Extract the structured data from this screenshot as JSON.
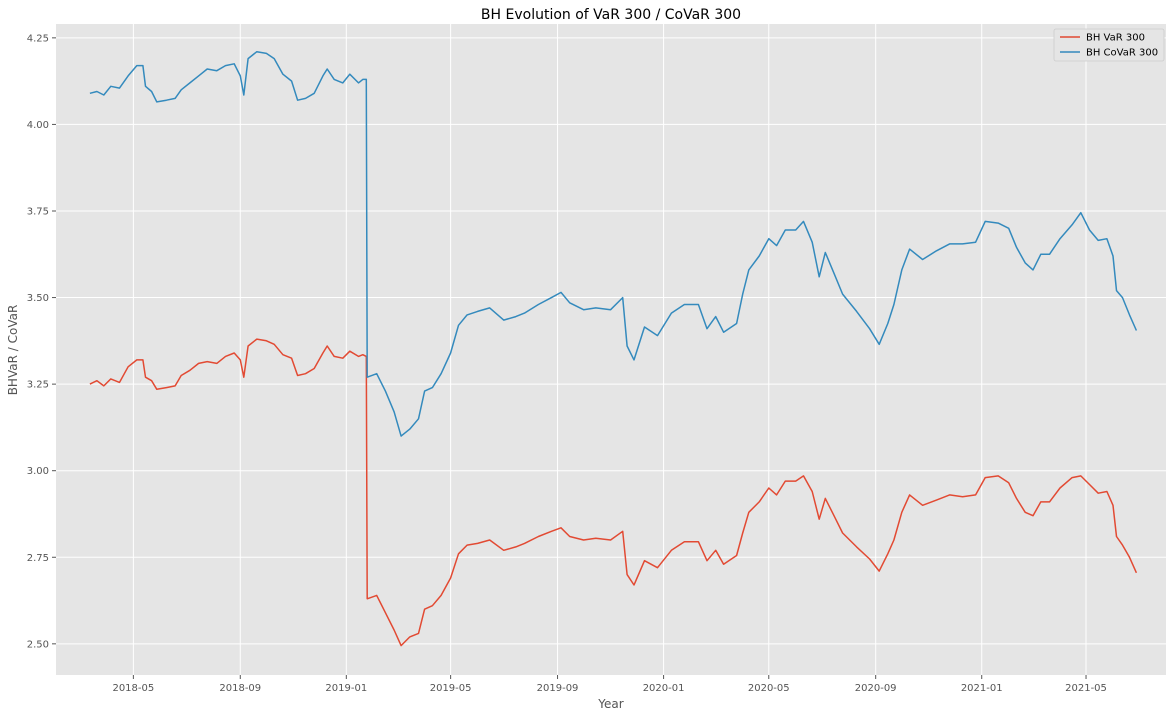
{
  "chart_data": {
    "type": "line",
    "title": "BH  Evolution of VaR 300 / CoVaR 300",
    "xlabel": "Year",
    "ylabel": "BHVaR / CoVaR",
    "x_ticks": [
      "2018-05",
      "2018-09",
      "2019-01",
      "2019-05",
      "2019-09",
      "2020-01",
      "2020-05",
      "2020-09",
      "2021-01",
      "2021-05"
    ],
    "x_range": [
      "2018-02-01",
      "2021-08-01"
    ],
    "y_ticks": [
      "2.50",
      "2.75",
      "3.00",
      "3.25",
      "3.50",
      "3.75",
      "4.00",
      "4.25"
    ],
    "ylim": [
      2.41,
      4.29
    ],
    "grid": true,
    "legend_position": "top-right",
    "series": [
      {
        "name": "BH  VaR 300",
        "color": "#E24A33",
        "points": [
          [
            "2018-03-12",
            3.25
          ],
          [
            "2018-03-20",
            3.26
          ],
          [
            "2018-03-28",
            3.245
          ],
          [
            "2018-04-05",
            3.265
          ],
          [
            "2018-04-15",
            3.255
          ],
          [
            "2018-04-25",
            3.3
          ],
          [
            "2018-05-05",
            3.32
          ],
          [
            "2018-05-12",
            3.32
          ],
          [
            "2018-05-15",
            3.27
          ],
          [
            "2018-05-22",
            3.26
          ],
          [
            "2018-05-28",
            3.235
          ],
          [
            "2018-06-08",
            3.24
          ],
          [
            "2018-06-18",
            3.245
          ],
          [
            "2018-06-25",
            3.275
          ],
          [
            "2018-07-05",
            3.29
          ],
          [
            "2018-07-15",
            3.31
          ],
          [
            "2018-07-25",
            3.315
          ],
          [
            "2018-08-05",
            3.31
          ],
          [
            "2018-08-15",
            3.33
          ],
          [
            "2018-08-25",
            3.34
          ],
          [
            "2018-09-01",
            3.32
          ],
          [
            "2018-09-05",
            3.27
          ],
          [
            "2018-09-10",
            3.36
          ],
          [
            "2018-09-20",
            3.38
          ],
          [
            "2018-10-01",
            3.375
          ],
          [
            "2018-10-10",
            3.365
          ],
          [
            "2018-10-20",
            3.335
          ],
          [
            "2018-10-30",
            3.325
          ],
          [
            "2018-11-06",
            3.275
          ],
          [
            "2018-11-15",
            3.28
          ],
          [
            "2018-11-25",
            3.295
          ],
          [
            "2018-12-05",
            3.34
          ],
          [
            "2018-12-10",
            3.36
          ],
          [
            "2018-12-18",
            3.33
          ],
          [
            "2018-12-28",
            3.325
          ],
          [
            "2019-01-05",
            3.345
          ],
          [
            "2019-01-15",
            3.33
          ],
          [
            "2019-01-20",
            3.335
          ],
          [
            "2019-01-24",
            3.33
          ],
          [
            "2019-01-25",
            2.63
          ],
          [
            "2019-02-05",
            2.64
          ],
          [
            "2019-02-15",
            2.59
          ],
          [
            "2019-02-25",
            2.54
          ],
          [
            "2019-03-05",
            2.495
          ],
          [
            "2019-03-15",
            2.52
          ],
          [
            "2019-03-25",
            2.53
          ],
          [
            "2019-04-01",
            2.6
          ],
          [
            "2019-04-10",
            2.61
          ],
          [
            "2019-04-20",
            2.64
          ],
          [
            "2019-05-01",
            2.69
          ],
          [
            "2019-05-10",
            2.76
          ],
          [
            "2019-05-20",
            2.785
          ],
          [
            "2019-06-01",
            2.79
          ],
          [
            "2019-06-15",
            2.8
          ],
          [
            "2019-07-01",
            2.77
          ],
          [
            "2019-07-15",
            2.78
          ],
          [
            "2019-07-25",
            2.79
          ],
          [
            "2019-08-10",
            2.81
          ],
          [
            "2019-08-25",
            2.825
          ],
          [
            "2019-09-05",
            2.835
          ],
          [
            "2019-09-15",
            2.81
          ],
          [
            "2019-10-01",
            2.8
          ],
          [
            "2019-10-15",
            2.805
          ],
          [
            "2019-11-01",
            2.8
          ],
          [
            "2019-11-15",
            2.825
          ],
          [
            "2019-11-20",
            2.7
          ],
          [
            "2019-11-28",
            2.67
          ],
          [
            "2019-12-10",
            2.74
          ],
          [
            "2019-12-25",
            2.72
          ],
          [
            "2020-01-10",
            2.77
          ],
          [
            "2020-01-25",
            2.795
          ],
          [
            "2020-02-10",
            2.795
          ],
          [
            "2020-02-20",
            2.74
          ],
          [
            "2020-03-01",
            2.77
          ],
          [
            "2020-03-10",
            2.73
          ],
          [
            "2020-03-25",
            2.755
          ],
          [
            "2020-04-01",
            2.82
          ],
          [
            "2020-04-08",
            2.88
          ],
          [
            "2020-04-20",
            2.91
          ],
          [
            "2020-05-01",
            2.95
          ],
          [
            "2020-05-10",
            2.93
          ],
          [
            "2020-05-20",
            2.97
          ],
          [
            "2020-06-01",
            2.97
          ],
          [
            "2020-06-10",
            2.985
          ],
          [
            "2020-06-20",
            2.94
          ],
          [
            "2020-06-28",
            2.86
          ],
          [
            "2020-07-05",
            2.92
          ],
          [
            "2020-07-15",
            2.87
          ],
          [
            "2020-07-25",
            2.82
          ],
          [
            "2020-08-10",
            2.78
          ],
          [
            "2020-08-25",
            2.745
          ],
          [
            "2020-09-05",
            2.71
          ],
          [
            "2020-09-15",
            2.76
          ],
          [
            "2020-09-22",
            2.8
          ],
          [
            "2020-10-01",
            2.88
          ],
          [
            "2020-10-10",
            2.93
          ],
          [
            "2020-10-25",
            2.9
          ],
          [
            "2020-11-10",
            2.915
          ],
          [
            "2020-11-25",
            2.93
          ],
          [
            "2020-12-10",
            2.925
          ],
          [
            "2020-12-25",
            2.93
          ],
          [
            "2021-01-05",
            2.98
          ],
          [
            "2021-01-20",
            2.985
          ],
          [
            "2021-02-01",
            2.965
          ],
          [
            "2021-02-10",
            2.92
          ],
          [
            "2021-02-20",
            2.88
          ],
          [
            "2021-03-01",
            2.87
          ],
          [
            "2021-03-10",
            2.91
          ],
          [
            "2021-03-20",
            2.91
          ],
          [
            "2021-04-01",
            2.95
          ],
          [
            "2021-04-15",
            2.98
          ],
          [
            "2021-04-25",
            2.985
          ],
          [
            "2021-05-05",
            2.96
          ],
          [
            "2021-05-15",
            2.935
          ],
          [
            "2021-05-25",
            2.94
          ],
          [
            "2021-06-01",
            2.9
          ],
          [
            "2021-06-05",
            2.81
          ],
          [
            "2021-06-12",
            2.785
          ],
          [
            "2021-06-20",
            2.75
          ],
          [
            "2021-06-28",
            2.705
          ]
        ]
      },
      {
        "name": "BH  CoVaR 300",
        "color": "#348ABD",
        "points": [
          [
            "2018-03-12",
            4.09
          ],
          [
            "2018-03-20",
            4.095
          ],
          [
            "2018-03-28",
            4.085
          ],
          [
            "2018-04-05",
            4.11
          ],
          [
            "2018-04-15",
            4.105
          ],
          [
            "2018-04-25",
            4.14
          ],
          [
            "2018-05-05",
            4.17
          ],
          [
            "2018-05-12",
            4.17
          ],
          [
            "2018-05-15",
            4.11
          ],
          [
            "2018-05-22",
            4.095
          ],
          [
            "2018-05-28",
            4.065
          ],
          [
            "2018-06-08",
            4.07
          ],
          [
            "2018-06-18",
            4.075
          ],
          [
            "2018-06-25",
            4.1
          ],
          [
            "2018-07-05",
            4.12
          ],
          [
            "2018-07-15",
            4.14
          ],
          [
            "2018-07-25",
            4.16
          ],
          [
            "2018-08-05",
            4.155
          ],
          [
            "2018-08-15",
            4.17
          ],
          [
            "2018-08-25",
            4.175
          ],
          [
            "2018-09-01",
            4.14
          ],
          [
            "2018-09-05",
            4.085
          ],
          [
            "2018-09-10",
            4.19
          ],
          [
            "2018-09-20",
            4.21
          ],
          [
            "2018-10-01",
            4.205
          ],
          [
            "2018-10-10",
            4.19
          ],
          [
            "2018-10-20",
            4.145
          ],
          [
            "2018-10-30",
            4.125
          ],
          [
            "2018-11-06",
            4.07
          ],
          [
            "2018-11-15",
            4.075
          ],
          [
            "2018-11-25",
            4.09
          ],
          [
            "2018-12-05",
            4.14
          ],
          [
            "2018-12-10",
            4.16
          ],
          [
            "2018-12-18",
            4.13
          ],
          [
            "2018-12-28",
            4.12
          ],
          [
            "2019-01-05",
            4.145
          ],
          [
            "2019-01-15",
            4.12
          ],
          [
            "2019-01-20",
            4.13
          ],
          [
            "2019-01-24",
            4.13
          ],
          [
            "2019-01-25",
            3.27
          ],
          [
            "2019-02-05",
            3.28
          ],
          [
            "2019-02-15",
            3.23
          ],
          [
            "2019-02-25",
            3.17
          ],
          [
            "2019-03-05",
            3.1
          ],
          [
            "2019-03-15",
            3.12
          ],
          [
            "2019-03-25",
            3.15
          ],
          [
            "2019-04-01",
            3.23
          ],
          [
            "2019-04-10",
            3.24
          ],
          [
            "2019-04-20",
            3.28
          ],
          [
            "2019-05-01",
            3.34
          ],
          [
            "2019-05-10",
            3.42
          ],
          [
            "2019-05-20",
            3.45
          ],
          [
            "2019-06-01",
            3.46
          ],
          [
            "2019-06-15",
            3.47
          ],
          [
            "2019-07-01",
            3.435
          ],
          [
            "2019-07-15",
            3.445
          ],
          [
            "2019-07-25",
            3.455
          ],
          [
            "2019-08-10",
            3.48
          ],
          [
            "2019-08-25",
            3.5
          ],
          [
            "2019-09-05",
            3.515
          ],
          [
            "2019-09-15",
            3.485
          ],
          [
            "2019-10-01",
            3.465
          ],
          [
            "2019-10-15",
            3.47
          ],
          [
            "2019-11-01",
            3.465
          ],
          [
            "2019-11-15",
            3.5
          ],
          [
            "2019-11-20",
            3.36
          ],
          [
            "2019-11-28",
            3.32
          ],
          [
            "2019-12-10",
            3.415
          ],
          [
            "2019-12-25",
            3.39
          ],
          [
            "2020-01-10",
            3.455
          ],
          [
            "2020-01-25",
            3.48
          ],
          [
            "2020-02-10",
            3.48
          ],
          [
            "2020-02-20",
            3.41
          ],
          [
            "2020-03-01",
            3.445
          ],
          [
            "2020-03-10",
            3.4
          ],
          [
            "2020-03-25",
            3.425
          ],
          [
            "2020-04-01",
            3.51
          ],
          [
            "2020-04-08",
            3.58
          ],
          [
            "2020-04-20",
            3.62
          ],
          [
            "2020-05-01",
            3.67
          ],
          [
            "2020-05-10",
            3.65
          ],
          [
            "2020-05-20",
            3.695
          ],
          [
            "2020-06-01",
            3.695
          ],
          [
            "2020-06-10",
            3.72
          ],
          [
            "2020-06-20",
            3.66
          ],
          [
            "2020-06-28",
            3.56
          ],
          [
            "2020-07-05",
            3.63
          ],
          [
            "2020-07-15",
            3.57
          ],
          [
            "2020-07-25",
            3.51
          ],
          [
            "2020-08-10",
            3.46
          ],
          [
            "2020-08-25",
            3.41
          ],
          [
            "2020-09-05",
            3.365
          ],
          [
            "2020-09-15",
            3.425
          ],
          [
            "2020-09-22",
            3.48
          ],
          [
            "2020-10-01",
            3.58
          ],
          [
            "2020-10-10",
            3.64
          ],
          [
            "2020-10-25",
            3.61
          ],
          [
            "2020-11-10",
            3.635
          ],
          [
            "2020-11-25",
            3.655
          ],
          [
            "2020-12-10",
            3.655
          ],
          [
            "2020-12-25",
            3.66
          ],
          [
            "2021-01-05",
            3.72
          ],
          [
            "2021-01-20",
            3.715
          ],
          [
            "2021-02-01",
            3.7
          ],
          [
            "2021-02-10",
            3.645
          ],
          [
            "2021-02-20",
            3.6
          ],
          [
            "2021-03-01",
            3.58
          ],
          [
            "2021-03-10",
            3.625
          ],
          [
            "2021-03-20",
            3.625
          ],
          [
            "2021-04-01",
            3.67
          ],
          [
            "2021-04-15",
            3.71
          ],
          [
            "2021-04-25",
            3.745
          ],
          [
            "2021-05-05",
            3.695
          ],
          [
            "2021-05-15",
            3.665
          ],
          [
            "2021-05-25",
            3.67
          ],
          [
            "2021-06-01",
            3.62
          ],
          [
            "2021-06-05",
            3.52
          ],
          [
            "2021-06-12",
            3.5
          ],
          [
            "2021-06-20",
            3.45
          ],
          [
            "2021-06-28",
            3.405
          ]
        ]
      }
    ]
  }
}
